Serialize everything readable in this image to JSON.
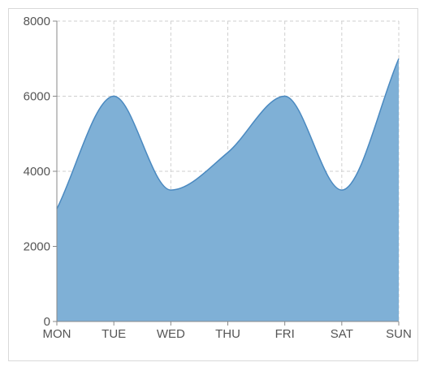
{
  "chart_data": {
    "type": "area",
    "categories": [
      "MON",
      "TUE",
      "WED",
      "THU",
      "FRI",
      "SAT",
      "SUN"
    ],
    "series": [
      {
        "values": [
          3000,
          6000,
          3500,
          4500,
          6000,
          3500,
          7000
        ]
      }
    ],
    "ylim": [
      0,
      8000
    ],
    "yticks": [
      0,
      2000,
      4000,
      6000,
      8000
    ],
    "grid": true,
    "smooth": true,
    "colors": {
      "fill": "#7fb0d6",
      "line": "#4a89c0"
    }
  }
}
